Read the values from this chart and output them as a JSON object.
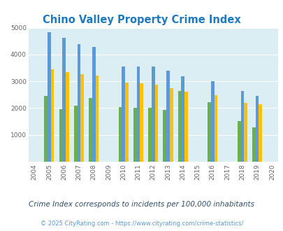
{
  "title": "Chino Valley Property Crime Index",
  "subtitle": "Crime Index corresponds to incidents per 100,000 inhabitants",
  "footer": "© 2025 CityRating.com - https://www.cityrating.com/crime-statistics/",
  "years": [
    2005,
    2006,
    2007,
    2008,
    2010,
    2011,
    2012,
    2013,
    2014,
    2016,
    2018,
    2019
  ],
  "chino_valley": [
    2450,
    1950,
    2100,
    2370,
    2050,
    2020,
    2020,
    1930,
    2650,
    2230,
    1520,
    1270
  ],
  "arizona": [
    4820,
    4620,
    4400,
    4280,
    3540,
    3560,
    3540,
    3400,
    3180,
    3000,
    2650,
    2460
  ],
  "national": [
    3440,
    3340,
    3260,
    3220,
    2940,
    2920,
    2880,
    2730,
    2600,
    2470,
    2190,
    2130
  ],
  "chino_color": "#6ab04c",
  "arizona_color": "#5b9bd5",
  "national_color": "#ffc000",
  "bg_color": "#daeef3",
  "title_color": "#1f7abf",
  "text_color": "#2f4f6f",
  "footer_color": "#5b9bd5",
  "subtitle_color": "#2f4f6f",
  "ylim": [
    0,
    5000
  ],
  "yticks": [
    0,
    1000,
    2000,
    3000,
    4000,
    5000
  ],
  "all_years": [
    2004,
    2005,
    2006,
    2007,
    2008,
    2009,
    2010,
    2011,
    2012,
    2013,
    2014,
    2015,
    2016,
    2017,
    2018,
    2019,
    2020
  ],
  "bar_width": 0.22
}
